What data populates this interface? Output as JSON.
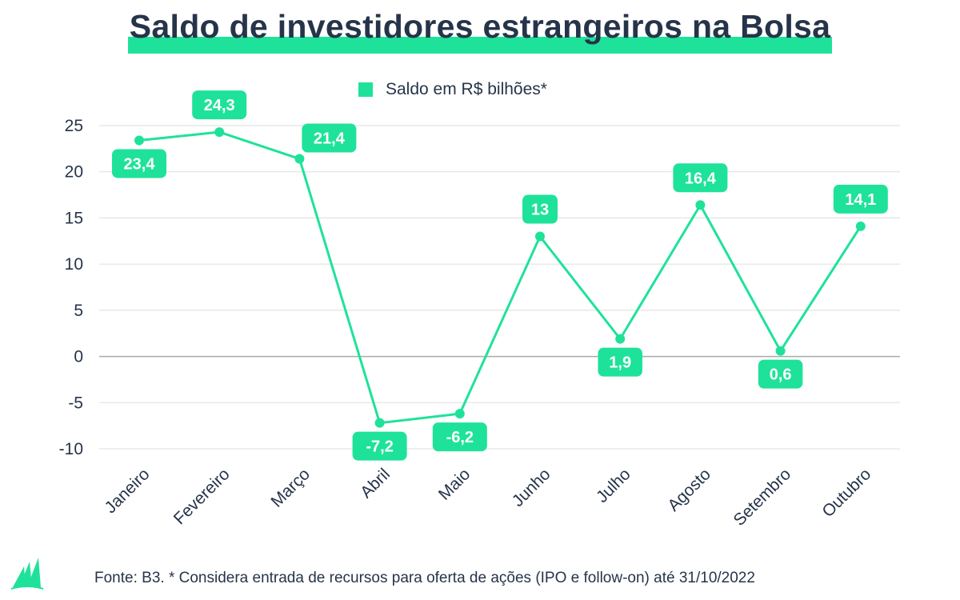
{
  "header": {
    "title": "Saldo de investidores estrangeiros na Bolsa"
  },
  "legend": {
    "label": "Saldo em R$ bilhões*"
  },
  "footer": {
    "source": "Fonte: B3. * Considera entrada de recursos para oferta de ações (IPO e follow-on) até 31/10/2022"
  },
  "colors": {
    "accent": "#1fe29a",
    "text": "#26344a",
    "grid": "#dddddd",
    "zero_line": "#aaaaaa"
  },
  "logo": {
    "icon": "green-sail-logo-icon"
  },
  "chart_data": {
    "type": "line",
    "title": "Saldo de investidores estrangeiros na Bolsa",
    "xlabel": "",
    "ylabel": "",
    "categories": [
      "Janeiro",
      "Fevereiro",
      "Março",
      "Abril",
      "Maio",
      "Junho",
      "Julho",
      "Agosto",
      "Setembro",
      "Outubro"
    ],
    "series": [
      {
        "name": "Saldo em R$ bilhões*",
        "values": [
          23.4,
          24.3,
          21.4,
          -7.2,
          -6.2,
          13,
          1.9,
          16.4,
          0.6,
          14.1
        ],
        "labels": [
          "23,4",
          "24,3",
          "21,4",
          "-7,2",
          "-6,2",
          "13",
          "1,9",
          "16,4",
          "0,6",
          "14,1"
        ],
        "label_positions": [
          "below",
          "above",
          "above-right",
          "below",
          "below",
          "above",
          "below",
          "above",
          "below",
          "above"
        ]
      }
    ],
    "y_ticks": [
      25,
      20,
      15,
      10,
      5,
      0,
      -5,
      -10
    ],
    "y_tick_labels": [
      "25",
      "20",
      "15",
      "10",
      "5",
      "0",
      "-5",
      "-10"
    ],
    "ylim": [
      -10,
      25
    ],
    "grid": true,
    "legend_position": "top-center"
  }
}
